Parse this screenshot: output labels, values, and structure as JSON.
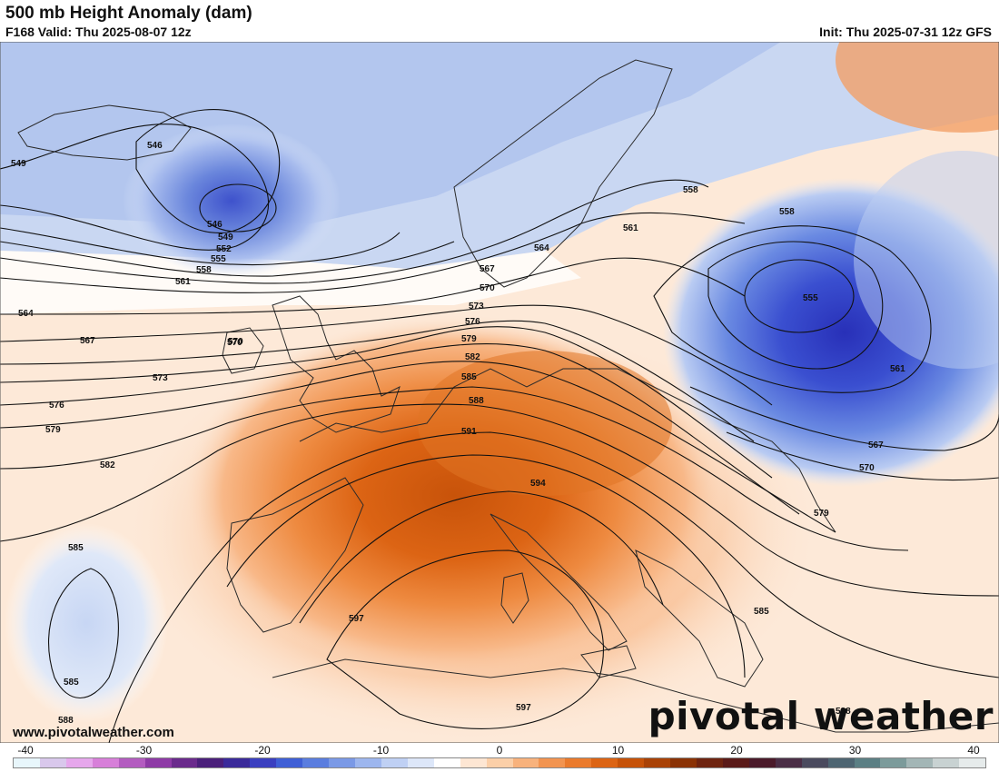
{
  "header": {
    "title": "500 mb Height Anomaly (dam)",
    "valid": "F168 Valid: Thu 2025-08-07 12z",
    "init": "Init: Thu 2025-07-31 12z GFS"
  },
  "watermark": {
    "url": "www.pivotalweather.com",
    "brand": "pivotal weather"
  },
  "colorbar": {
    "ticks": [
      "-40",
      "-30",
      "-20",
      "-10",
      "0",
      "10",
      "20",
      "30",
      "40"
    ],
    "colors": [
      "#e8f6fb",
      "#d9c8ec",
      "#e6a7ec",
      "#d77fd9",
      "#b35cc0",
      "#8e3aa6",
      "#6a2a8c",
      "#4a1f7a",
      "#3a2a9a",
      "#3a3fc0",
      "#3f5fd6",
      "#5a7ddf",
      "#7a99e6",
      "#9db6ee",
      "#bfd0f4",
      "#dde7f9",
      "#ffffff",
      "#fde6d3",
      "#fbcfa8",
      "#f8b27c",
      "#f29450",
      "#ea7a2c",
      "#dc6414",
      "#c65208",
      "#a94206",
      "#8a3205",
      "#6e2410",
      "#5a1a18",
      "#4a1a2a",
      "#4a2e46",
      "#4a4a5e",
      "#4e6572",
      "#5b7f84",
      "#7c9b9b",
      "#a3b6b6",
      "#c8d2d2",
      "#e6ebeb"
    ]
  },
  "map": {
    "contour_labels": [
      "546",
      "546",
      "549",
      "549",
      "552",
      "555",
      "558",
      "561",
      "564",
      "567",
      "570",
      "573",
      "576",
      "579",
      "582",
      "585",
      "585",
      "588",
      "570",
      "573",
      "576",
      "579",
      "582",
      "585",
      "588",
      "591",
      "594",
      "597",
      "597",
      "564",
      "567",
      "570",
      "561",
      "558",
      "558",
      "555",
      "561",
      "567",
      "570",
      "579",
      "585",
      "588"
    ]
  }
}
